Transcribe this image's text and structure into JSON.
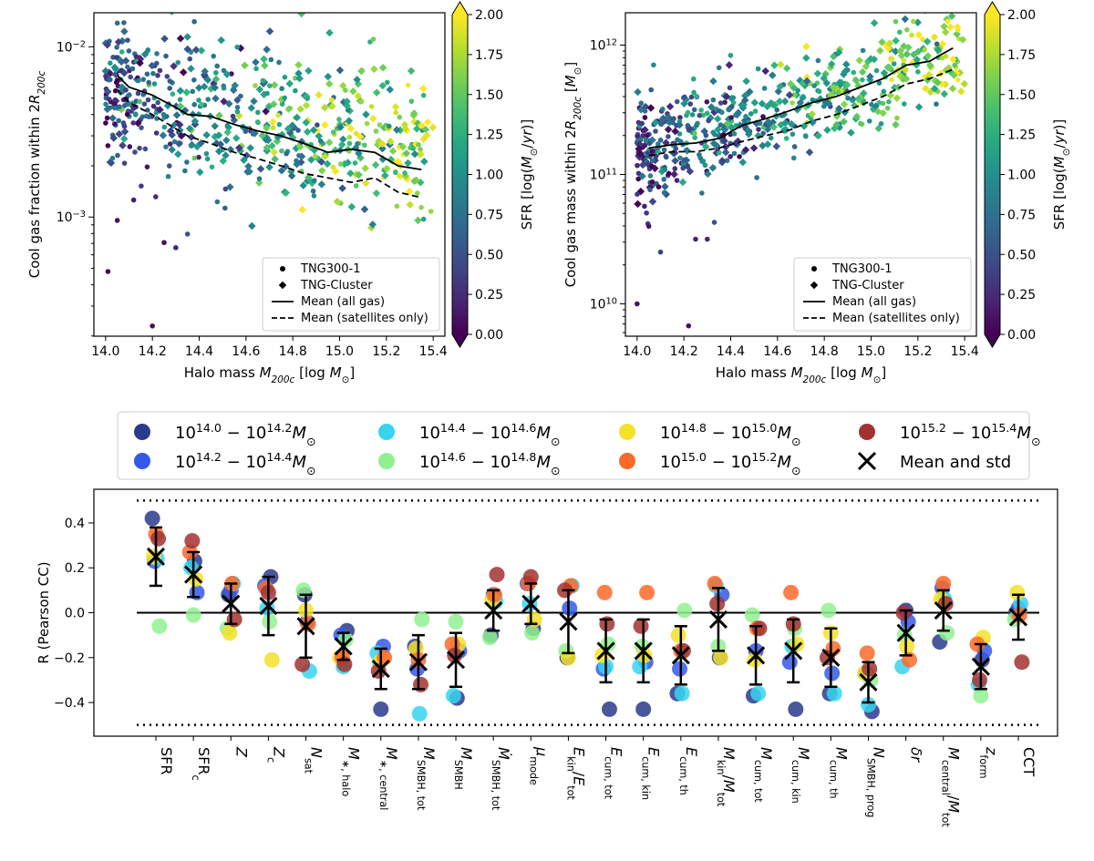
{
  "chart_data": [
    {
      "type": "scatter",
      "panel": "top-left",
      "xlabel": "Halo mass M_200c [log M_sun]",
      "ylabel": "Cool gas fraction within 2R_200c",
      "xlim": [
        13.95,
        15.45
      ],
      "xticks": [
        "14.0",
        "14.2",
        "14.4",
        "14.6",
        "14.8",
        "15.0",
        "15.2",
        "15.4"
      ],
      "ylim_log10": [
        -3.7,
        -1.8
      ],
      "yticks": [
        {
          "exp": -3,
          "label": "10"
        },
        {
          "exp": -2,
          "label": "10"
        }
      ],
      "ytick_exps": [
        "−3",
        "−2"
      ],
      "colorbar": {
        "label": "SFR [log(M_sun/yr)]",
        "min": 0.0,
        "max": 2.0,
        "ticks": [
          "0.00",
          "0.25",
          "0.50",
          "0.75",
          "1.00",
          "1.25",
          "1.50",
          "1.75",
          "2.00"
        ]
      },
      "legend": {
        "position": "lower-right",
        "entries": [
          "TNG300-1",
          "TNG-Cluster",
          "Mean (all gas)",
          "Mean (satellites only)"
        ]
      },
      "mean_all": {
        "x": [
          14.05,
          14.1,
          14.2,
          14.3,
          14.35,
          14.45,
          14.55,
          14.65,
          14.75,
          14.85,
          14.95,
          15.05,
          15.15,
          15.25,
          15.35
        ],
        "y": [
          0.0068,
          0.0058,
          0.0052,
          0.0044,
          0.004,
          0.0039,
          0.0035,
          0.0032,
          0.003,
          0.0027,
          0.0024,
          0.0025,
          0.0024,
          0.002,
          0.0019
        ]
      },
      "mean_sat": {
        "x": [
          14.05,
          14.1,
          14.2,
          14.3,
          14.35,
          14.45,
          14.55,
          14.65,
          14.75,
          14.85,
          14.95,
          15.05,
          15.15,
          15.25,
          15.35
        ],
        "y": [
          0.0056,
          0.0047,
          0.004,
          0.0033,
          0.003,
          0.0027,
          0.0024,
          0.0022,
          0.002,
          0.0018,
          0.0017,
          0.0016,
          0.0017,
          0.0014,
          0.0013
        ]
      }
    },
    {
      "type": "scatter",
      "panel": "top-right",
      "xlabel": "Halo mass M_200c [log M_sun]",
      "ylabel": "Cool gas mass within 2R_200c [M_sun]",
      "xlim": [
        13.95,
        15.45
      ],
      "xticks": [
        "14.0",
        "14.2",
        "14.4",
        "14.6",
        "14.8",
        "15.0",
        "15.2",
        "15.4"
      ],
      "ylim_log10": [
        9.75,
        12.25
      ],
      "yticks": [
        {
          "exp": 10,
          "label": "10"
        },
        {
          "exp": 11,
          "label": "10"
        },
        {
          "exp": 12,
          "label": "10"
        }
      ],
      "ytick_exps": [
        "10",
        "11",
        "12"
      ],
      "colorbar": {
        "label": "SFR [log(M_sun/yr)]",
        "min": 0.0,
        "max": 2.0,
        "ticks": [
          "0.00",
          "0.25",
          "0.50",
          "0.75",
          "1.00",
          "1.25",
          "1.50",
          "1.75",
          "2.00"
        ]
      },
      "legend": {
        "position": "lower-right",
        "entries": [
          "TNG300-1",
          "TNG-Cluster",
          "Mean (all gas)",
          "Mean (satellites only)"
        ]
      },
      "mean_all": {
        "x": [
          14.05,
          14.15,
          14.25,
          14.35,
          14.45,
          14.55,
          14.65,
          14.75,
          14.85,
          14.95,
          15.05,
          15.15,
          15.25,
          15.35
        ],
        "y": [
          160000000000.0,
          170000000000.0,
          175000000000.0,
          190000000000.0,
          240000000000.0,
          270000000000.0,
          310000000000.0,
          360000000000.0,
          400000000000.0,
          470000000000.0,
          550000000000.0,
          700000000000.0,
          750000000000.0,
          950000000000.0
        ]
      },
      "mean_sat": {
        "x": [
          14.05,
          14.15,
          14.25,
          14.35,
          14.45,
          14.55,
          14.65,
          14.75,
          14.85,
          14.95,
          15.05,
          15.15,
          15.25,
          15.35
        ],
        "y": [
          140000000000.0,
          150000000000.0,
          150000000000.0,
          160000000000.0,
          180000000000.0,
          200000000000.0,
          220000000000.0,
          260000000000.0,
          290000000000.0,
          340000000000.0,
          400000000000.0,
          500000000000.0,
          550000000000.0,
          650000000000.0
        ]
      }
    },
    {
      "type": "scatter",
      "panel": "bottom",
      "ylabel": "R (Pearson CC)",
      "ylim": [
        -0.55,
        0.55
      ],
      "yticks": [
        -0.4,
        -0.2,
        0.0,
        0.2,
        0.4
      ],
      "ytick_labels": [
        "−0.4",
        "−0.2",
        "0.0",
        "0.2",
        "0.4"
      ],
      "reference_lines": [
        0.5,
        0.0,
        -0.5
      ],
      "categories": [
        "SFR",
        "SFR_c",
        "Z",
        "Z_c",
        "N_sat",
        "M_*,halo",
        "M_*,central",
        "M_SMBH,tot",
        "M_SMBH",
        "Mdot_SMBH,tot",
        "mu_mode",
        "E_kin/E_tot",
        "E_cum,tot",
        "E_cum,kin",
        "E_cum,th",
        "M_kin/M_tot",
        "M_cum,tot",
        "M_cum,kin",
        "M_cum,th",
        "N_SMBH,prog",
        "delta_r",
        "M_central/M_tot",
        "z_form",
        "CCT"
      ],
      "series": [
        {
          "name": "10^14.0 − 10^14.2 M_sun",
          "color": "#2b3a8c",
          "values": [
            0.42,
            0.23,
            0.08,
            0.16,
            0.08,
            -0.08,
            -0.43,
            -0.15,
            -0.38,
            -0.1,
            -0.07,
            -0.2,
            -0.43,
            -0.43,
            -0.36,
            -0.2,
            -0.37,
            -0.43,
            -0.36,
            -0.44,
            0.01,
            -0.13,
            -0.21,
            0.0
          ]
        },
        {
          "name": "10^14.2 − 10^14.4 M_sun",
          "color": "#3459e8",
          "values": [
            0.23,
            0.09,
            0.1,
            0.12,
            -0.04,
            -0.1,
            -0.15,
            -0.25,
            -0.17,
            0.08,
            0.13,
            0.02,
            -0.25,
            -0.22,
            -0.25,
            0.08,
            -0.17,
            -0.22,
            -0.27,
            -0.27,
            -0.04,
            0.11,
            -0.17,
            0.02
          ]
        },
        {
          "name": "10^14.4 − 10^14.6 M_sun",
          "color": "#37d3f0",
          "values": [
            0.24,
            0.2,
            0.13,
            0.02,
            -0.26,
            -0.24,
            -0.18,
            -0.45,
            -0.37,
            0.05,
            0.04,
            0.12,
            -0.24,
            -0.24,
            -0.36,
            0.12,
            -0.36,
            -0.15,
            -0.36,
            -0.41,
            -0.24,
            0.06,
            -0.32,
            0.04
          ]
        },
        {
          "name": "10^14.6 − 10^14.8 M_sun",
          "color": "#90f090",
          "values": [
            -0.06,
            -0.01,
            -0.07,
            -0.04,
            0.1,
            -0.12,
            -0.22,
            -0.03,
            -0.04,
            -0.11,
            -0.09,
            -0.17,
            -0.14,
            -0.15,
            0.01,
            -0.15,
            -0.01,
            -0.07,
            0.01,
            -0.3,
            -0.1,
            -0.09,
            -0.37,
            -0.03
          ]
        },
        {
          "name": "10^14.8 − 10^15.0 M_sun",
          "color": "#f5e12a",
          "values": [
            0.25,
            0.15,
            -0.09,
            -0.21,
            0.01,
            -0.2,
            -0.21,
            -0.16,
            -0.14,
            0.06,
            -0.03,
            -0.2,
            -0.19,
            -0.19,
            -0.1,
            -0.2,
            -0.21,
            -0.14,
            -0.09,
            -0.27,
            -0.15,
            0.06,
            -0.11,
            0.09
          ]
        },
        {
          "name": "10^15.0 − 10^15.2 M_sun",
          "color": "#fb6a2a",
          "values": [
            0.35,
            0.27,
            0.13,
            0.11,
            -0.05,
            -0.2,
            -0.2,
            -0.21,
            -0.14,
            0.08,
            0.13,
            0.12,
            0.09,
            0.09,
            -0.17,
            0.13,
            -0.07,
            0.09,
            -0.16,
            -0.18,
            -0.21,
            0.13,
            -0.14,
            -0.01
          ]
        },
        {
          "name": "10^15.2 − 10^15.4 M_sun",
          "color": "#a23231",
          "values": [
            0.33,
            0.32,
            -0.03,
            0.09,
            -0.23,
            -0.23,
            -0.26,
            -0.32,
            -0.19,
            0.17,
            0.16,
            0.1,
            -0.05,
            -0.06,
            -0.17,
            0.04,
            -0.07,
            -0.05,
            -0.2,
            -0.25,
            0.0,
            0.04,
            -0.3,
            -0.22
          ]
        }
      ],
      "mean": [
        0.25,
        0.17,
        0.04,
        0.03,
        -0.06,
        -0.15,
        -0.25,
        -0.22,
        -0.21,
        0.01,
        0.04,
        -0.04,
        -0.17,
        -0.17,
        -0.19,
        -0.03,
        -0.19,
        -0.17,
        -0.2,
        -0.31,
        -0.09,
        0.01,
        -0.24,
        -0.02
      ],
      "std": [
        0.13,
        0.1,
        0.09,
        0.13,
        0.14,
        0.06,
        0.09,
        0.12,
        0.12,
        0.09,
        0.09,
        0.14,
        0.14,
        0.14,
        0.13,
        0.14,
        0.13,
        0.14,
        0.13,
        0.09,
        0.1,
        0.09,
        0.1,
        0.1
      ],
      "legend": {
        "position": "top",
        "mean_label": "Mean and std"
      }
    }
  ]
}
